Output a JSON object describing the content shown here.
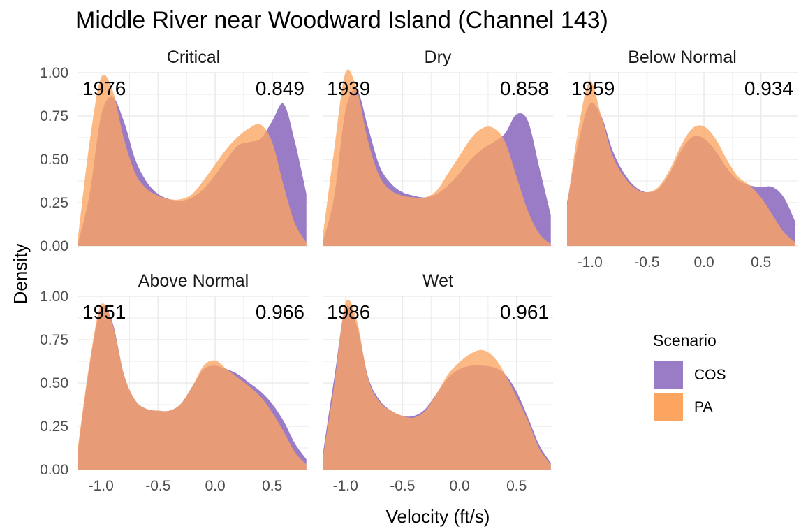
{
  "colors": {
    "COS": "#9a7bc6",
    "PA": "#fca560",
    "overlap": "#d07f5a",
    "grid": "#ebebeb"
  },
  "chart_data": {
    "type": "area",
    "title": "Middle River near Woodward Island (Channel 143)",
    "xlabel": "Velocity (ft/s)",
    "ylabel": "Density",
    "xlim": [
      -1.2,
      0.82
    ],
    "ylim": [
      0,
      1.0
    ],
    "x_ticks": [
      -1.0,
      -0.5,
      0.0,
      0.5
    ],
    "x_tick_labels": [
      "-1.0",
      "-0.5",
      "0.0",
      "0.5"
    ],
    "y_ticks": [
      0,
      0.25,
      0.5,
      0.75,
      1.0
    ],
    "y_tick_labels": [
      "0.00",
      "0.25",
      "0.50",
      "0.75",
      "1.00"
    ],
    "grid": true,
    "legend": {
      "title": "Scenario",
      "position": "right",
      "entries": [
        "COS",
        "PA"
      ]
    },
    "x": [
      -1.2,
      -1.1,
      -1.0,
      -0.9,
      -0.8,
      -0.7,
      -0.6,
      -0.5,
      -0.4,
      -0.3,
      -0.2,
      -0.1,
      0.0,
      0.1,
      0.2,
      0.3,
      0.4,
      0.5,
      0.6,
      0.7,
      0.8
    ],
    "panels": [
      {
        "name": "Critical",
        "year": "1976",
        "value": "0.849",
        "series": [
          {
            "name": "COS",
            "values": [
              0.02,
              0.3,
              0.75,
              0.86,
              0.72,
              0.5,
              0.37,
              0.3,
              0.27,
              0.26,
              0.28,
              0.33,
              0.41,
              0.5,
              0.58,
              0.6,
              0.62,
              0.72,
              0.82,
              0.6,
              0.3
            ]
          },
          {
            "name": "PA",
            "values": [
              0.06,
              0.6,
              0.97,
              0.9,
              0.62,
              0.42,
              0.33,
              0.29,
              0.27,
              0.27,
              0.3,
              0.38,
              0.47,
              0.56,
              0.63,
              0.68,
              0.7,
              0.6,
              0.35,
              0.13,
              0.02
            ]
          }
        ]
      },
      {
        "name": "Dry",
        "year": "1939",
        "value": "0.858",
        "series": [
          {
            "name": "COS",
            "values": [
              0.02,
              0.28,
              0.78,
              0.9,
              0.68,
              0.46,
              0.36,
              0.31,
              0.29,
              0.28,
              0.3,
              0.35,
              0.42,
              0.5,
              0.56,
              0.6,
              0.65,
              0.76,
              0.72,
              0.45,
              0.18
            ]
          },
          {
            "name": "PA",
            "values": [
              0.05,
              0.55,
              1.0,
              0.9,
              0.6,
              0.4,
              0.32,
              0.29,
              0.28,
              0.28,
              0.32,
              0.42,
              0.52,
              0.62,
              0.68,
              0.68,
              0.6,
              0.4,
              0.2,
              0.07,
              0.01
            ]
          }
        ]
      },
      {
        "name": "Below Normal",
        "year": "1959",
        "value": "0.934",
        "series": [
          {
            "name": "COS",
            "values": [
              0.25,
              0.6,
              0.82,
              0.75,
              0.55,
              0.42,
              0.34,
              0.31,
              0.33,
              0.42,
              0.55,
              0.63,
              0.62,
              0.55,
              0.45,
              0.38,
              0.35,
              0.34,
              0.34,
              0.28,
              0.14
            ]
          },
          {
            "name": "PA",
            "values": [
              0.23,
              0.68,
              0.95,
              0.75,
              0.52,
              0.4,
              0.33,
              0.31,
              0.34,
              0.44,
              0.58,
              0.68,
              0.69,
              0.62,
              0.5,
              0.4,
              0.35,
              0.28,
              0.18,
              0.08,
              0.02
            ]
          }
        ]
      },
      {
        "name": "Above Normal",
        "year": "1951",
        "value": "0.966",
        "series": [
          {
            "name": "COS",
            "values": [
              0.12,
              0.6,
              0.93,
              0.85,
              0.55,
              0.4,
              0.35,
              0.34,
              0.34,
              0.38,
              0.48,
              0.58,
              0.6,
              0.58,
              0.55,
              0.5,
              0.45,
              0.38,
              0.28,
              0.15,
              0.06
            ]
          },
          {
            "name": "PA",
            "values": [
              0.14,
              0.62,
              0.95,
              0.84,
              0.55,
              0.4,
              0.35,
              0.34,
              0.34,
              0.38,
              0.48,
              0.6,
              0.63,
              0.58,
              0.53,
              0.48,
              0.42,
              0.33,
              0.22,
              0.1,
              0.03
            ]
          }
        ]
      },
      {
        "name": "Wet",
        "year": "1986",
        "value": "0.961",
        "series": [
          {
            "name": "COS",
            "values": [
              0.08,
              0.52,
              0.93,
              0.83,
              0.53,
              0.4,
              0.34,
              0.31,
              0.31,
              0.35,
              0.44,
              0.53,
              0.58,
              0.6,
              0.6,
              0.59,
              0.55,
              0.45,
              0.3,
              0.14,
              0.04
            ]
          },
          {
            "name": "PA",
            "values": [
              0.06,
              0.48,
              0.96,
              0.86,
              0.52,
              0.39,
              0.34,
              0.31,
              0.3,
              0.34,
              0.44,
              0.55,
              0.62,
              0.67,
              0.69,
              0.65,
              0.55,
              0.42,
              0.28,
              0.12,
              0.03
            ]
          }
        ]
      }
    ]
  }
}
